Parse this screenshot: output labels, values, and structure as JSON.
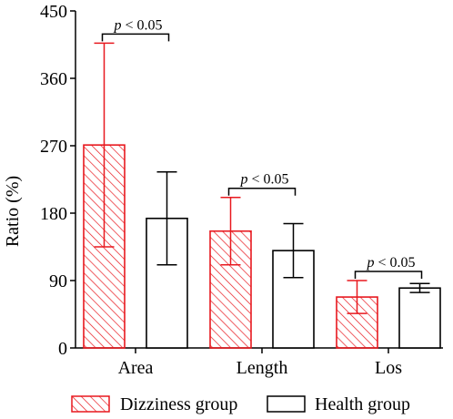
{
  "chart_data": {
    "type": "bar",
    "title": "",
    "xlabel": "",
    "ylabel": "Ratio (%)",
    "ylim": [
      0,
      450
    ],
    "yticks": [
      "0",
      "90",
      "180",
      "270",
      "360",
      "450"
    ],
    "categories": [
      "Area",
      "Length",
      "Los"
    ],
    "series": [
      {
        "name": "Dizziness group",
        "values": [
          271,
          156,
          68
        ],
        "error": [
          136,
          45,
          22
        ],
        "fill": "hatch",
        "color": "#e8191f"
      },
      {
        "name": "Health group",
        "values": [
          173,
          130,
          80
        ],
        "error": [
          62,
          36,
          6
        ],
        "fill": "none",
        "color": "#000000"
      }
    ],
    "annotations": [
      {
        "category": "Area",
        "text_p": "p",
        "text_rest": " < 0.05"
      },
      {
        "category": "Length",
        "text_p": "p",
        "text_rest": " < 0.05"
      },
      {
        "category": "Los",
        "text_p": "p",
        "text_rest": " < 0.05"
      }
    ],
    "legend_position": "bottom"
  }
}
